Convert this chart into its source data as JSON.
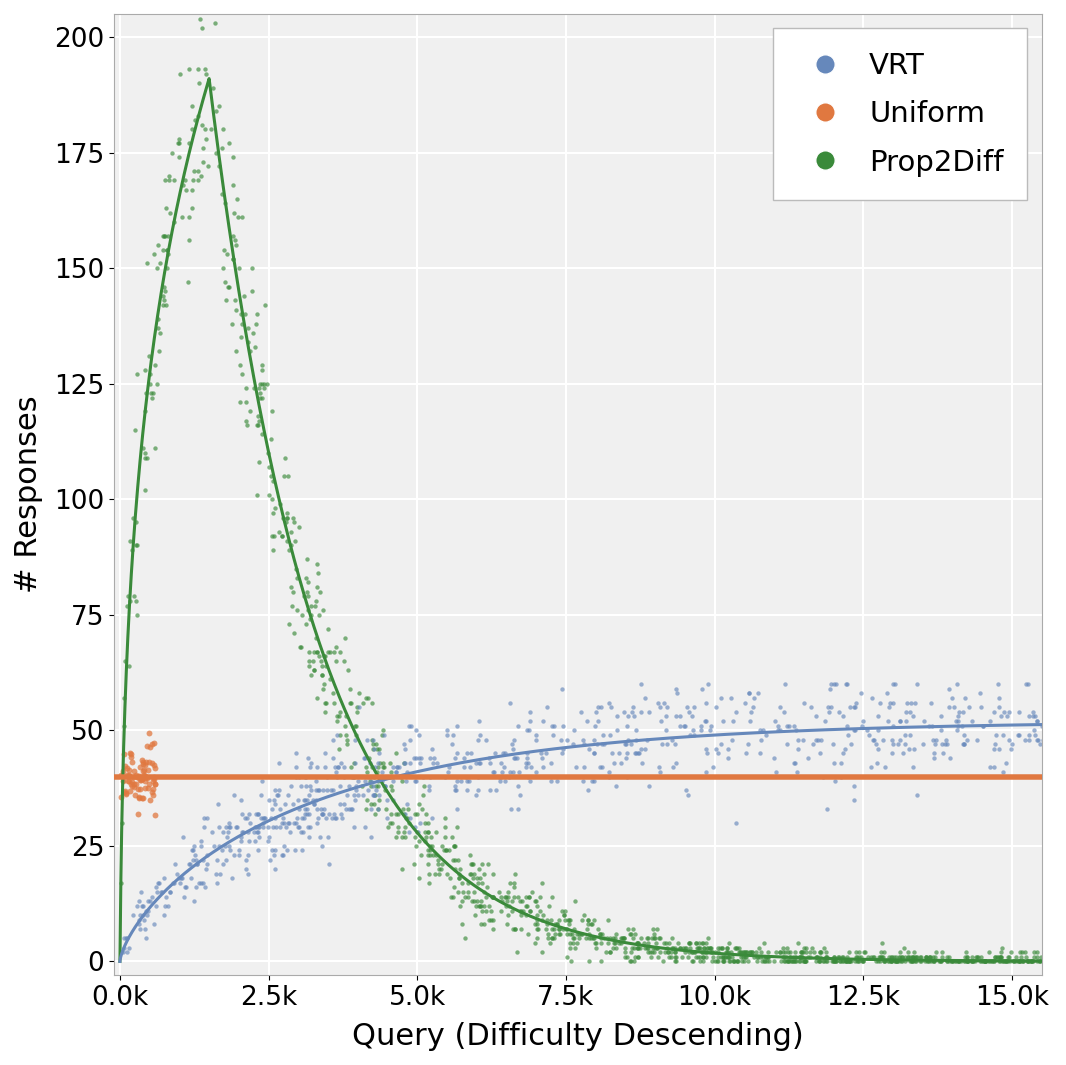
{
  "xlabel": "Query (Difficulty Descending)",
  "ylabel": "# Responses",
  "xlim": [
    -100,
    15500
  ],
  "ylim": [
    -3,
    205
  ],
  "xticks": [
    0,
    2500,
    5000,
    7500,
    10000,
    12500,
    15000
  ],
  "xtick_labels": [
    "0.0k",
    "2.5k",
    "5.0k",
    "7.5k",
    "10.0k",
    "12.5k",
    "15.0k"
  ],
  "yticks": [
    0,
    25,
    50,
    75,
    100,
    125,
    150,
    175,
    200
  ],
  "n_points": 15700,
  "uniform_value": 40,
  "uniform_color": "#E07840",
  "vrt_color": "#6688BB",
  "prop2diff_color": "#3A8A3A",
  "legend_labels": [
    "VRT",
    "Uniform",
    "Prop2Diff"
  ],
  "background_color": "#F0F0F0",
  "grid_color": "#FFFFFF",
  "prop2diff_peak_x": 1500,
  "prop2diff_peak_y": 191,
  "vrt_max_y": 52,
  "label_font_size": 22,
  "tick_font_size": 19,
  "legend_font_size": 21,
  "line_width": 2.2,
  "scatter_size_small": 10,
  "scatter_size_large": 18,
  "scatter_alpha": 0.65
}
